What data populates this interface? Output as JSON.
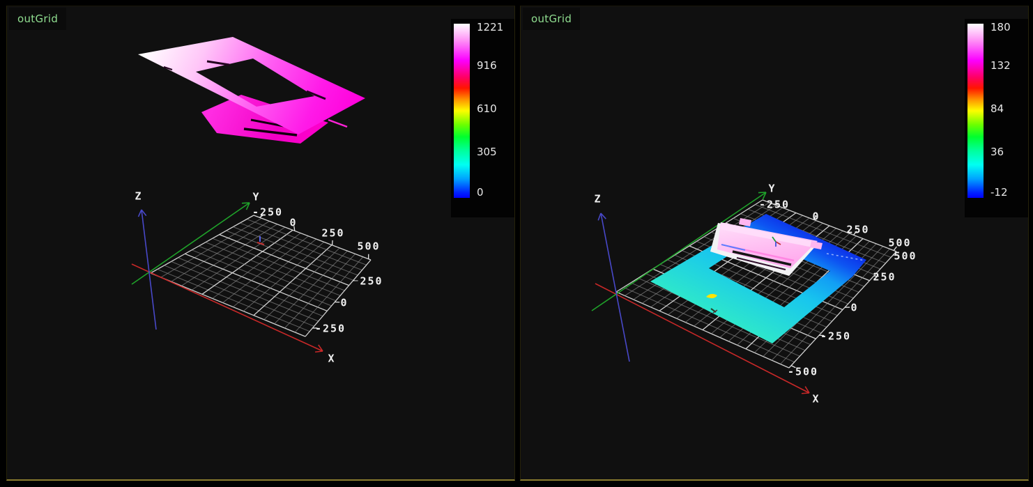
{
  "panels": [
    {
      "label": "outGrid",
      "axis_labels": {
        "x": "X",
        "y": "Y",
        "z": "Z"
      },
      "colorbar": {
        "tick_labels": [
          "1221",
          "916",
          "610",
          "305",
          "0"
        ]
      },
      "grid_tick_labels": {
        "far_edge": [
          "-250",
          "0",
          "250",
          "500"
        ],
        "right_edge": [
          "250",
          "0",
          "-250"
        ]
      }
    },
    {
      "label": "outGrid",
      "axis_labels": {
        "x": "X",
        "y": "Y",
        "z": "Z"
      },
      "colorbar": {
        "tick_labels": [
          "180",
          "132",
          "84",
          "36",
          "-12"
        ]
      },
      "grid_tick_labels": {
        "far_edge": [
          "-250",
          "0",
          "250",
          "500"
        ],
        "right_edge": [
          "500",
          "250",
          "0",
          "-250",
          "-500"
        ]
      }
    }
  ],
  "colors": {
    "panel_background": "#101010",
    "outer_background": "#000000",
    "label_green": "#8fdc8f",
    "border_olive": "#8a7b2e",
    "axis_x": "#c82828",
    "axis_y": "#1fa32a",
    "axis_z": "#4848c8",
    "colorbar_gradient": [
      "#ffffff",
      "#ff00ff",
      "#ff0000",
      "#ffff00",
      "#00ff00",
      "#00ffff",
      "#0000ff"
    ]
  }
}
